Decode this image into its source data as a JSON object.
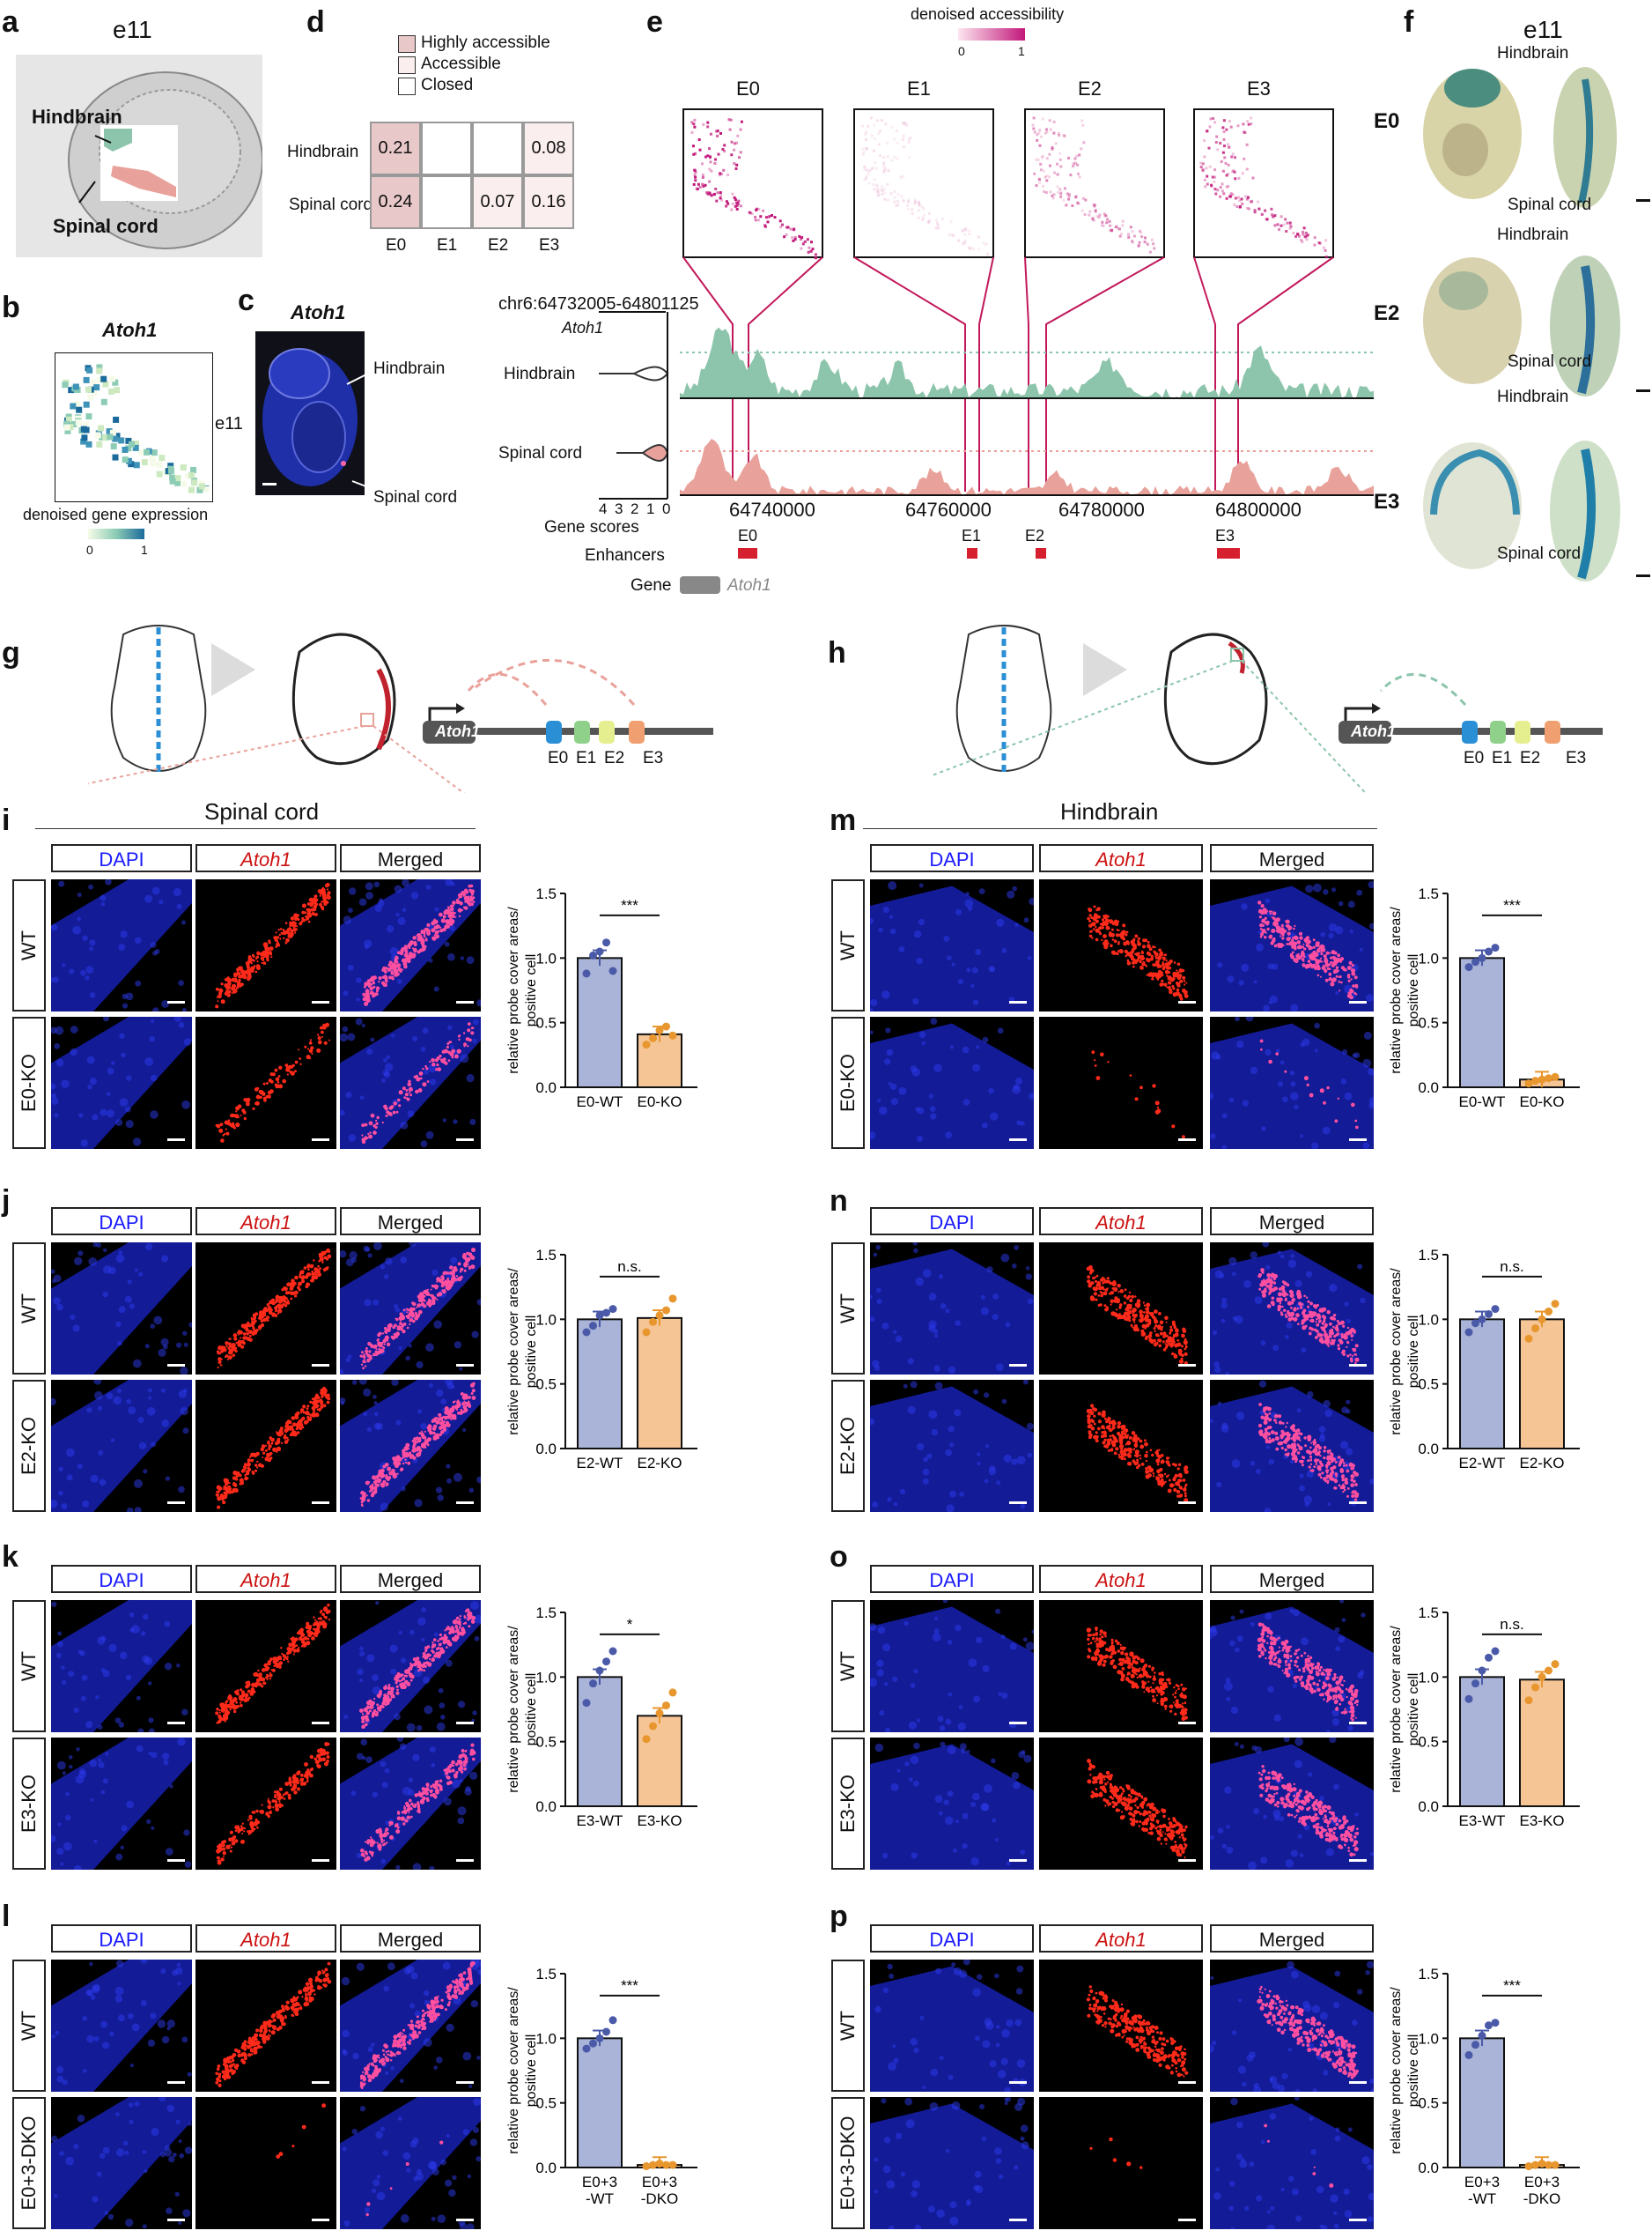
{
  "panel_letters": {
    "a": "a",
    "b": "b",
    "c": "c",
    "d": "d",
    "e": "e",
    "f": "f",
    "g": "g",
    "h": "h",
    "i": "i",
    "j": "j",
    "k": "k",
    "l": "l",
    "m": "m",
    "n": "n",
    "o": "o",
    "p": "p"
  },
  "panel_a": {
    "title": "e11",
    "label_hindbrain": "Hindbrain",
    "label_spinal": "Spinal cord"
  },
  "panel_b": {
    "gene": "Atoh1",
    "legend_title": "denoised gene expression",
    "legend_min": "0",
    "legend_max": "1"
  },
  "panel_c": {
    "gene": "Atoh1",
    "stage": "e11",
    "label_hindbrain": "Hindbrain",
    "label_spinal": "Spinal cord"
  },
  "panel_d": {
    "legend": [
      "Highly accessible",
      "Accessible",
      "Closed"
    ],
    "rows": [
      "Hindbrain",
      "Spinal cord"
    ],
    "cols": [
      "E0",
      "E1",
      "E2",
      "E3"
    ],
    "values": [
      [
        "0.21",
        "",
        "",
        "0.08"
      ],
      [
        "0.24",
        "",
        "0.07",
        "0.16"
      ]
    ]
  },
  "panel_e": {
    "legend_title": "denoised accessibility",
    "legend_min": "0",
    "legend_max": "1",
    "enhancers": [
      "E0",
      "E1",
      "E2",
      "E3"
    ],
    "locus": "chr6:64732005-64801125",
    "gene": "Atoh1",
    "track_hindbrain": "Hindbrain",
    "track_spinal": "Spinal cord",
    "x_ticks": [
      "64740000",
      "64760000",
      "64780000",
      "64800000"
    ],
    "gene_score_ticks": [
      "4",
      "3",
      "2",
      "1",
      "0"
    ],
    "gene_scores_label": "Gene scores",
    "enhancers_label": "Enhancers",
    "gene_label": "Gene",
    "gene_name": "Atoh1"
  },
  "panel_f": {
    "title": "e11",
    "rows": [
      "E0",
      "E2",
      "E3"
    ],
    "label_hindbrain": "Hindbrain",
    "label_spinal": "Spinal cord"
  },
  "panel_g": {
    "gene": "Atoh1",
    "enhancers": [
      "E0",
      "E1",
      "E2",
      "E3"
    ]
  },
  "panel_h": {
    "gene": "Atoh1",
    "enhancers": [
      "E0",
      "E1",
      "E2",
      "E3"
    ]
  },
  "section_spinal": "Spinal cord",
  "section_hindbrain": "Hindbrain",
  "col_headers": {
    "dapi": "DAPI",
    "atoh1": "Atoh1",
    "merged": "Merged"
  },
  "y_axis_label_1": "relative probe cover areas/",
  "y_axis_label_2": "positive cell",
  "y_ticks": [
    "0.0",
    "0.5",
    "1.0",
    "1.5"
  ],
  "colors": {
    "wt_bar": "#a9b4d8",
    "ko_bar": "#f5c596",
    "wt_dot": "#4a5aa8",
    "ko_dot": "#e8962e",
    "hind_track": "#8cc5ab",
    "spinal_track": "#e9a29b",
    "enhancer": "#d6202f",
    "access_magenta": "#c2187a",
    "highly": "#e8c8c8",
    "accessible": "#fbeeee"
  },
  "chart_data": [
    {
      "type": "bar",
      "panel": "i",
      "row_labels": [
        "WT",
        "E0-KO"
      ],
      "categories": [
        "E0-WT",
        "E0-KO"
      ],
      "values": [
        1.0,
        0.41
      ],
      "points": [
        [
          0.88,
          1.02,
          1.05,
          1.12,
          0.9
        ],
        [
          0.33,
          0.38,
          0.44,
          0.47,
          0.4
        ]
      ],
      "sig": "***",
      "ylim": [
        0,
        1.5
      ],
      "ylabel": "relative probe cover areas/ positive cell"
    },
    {
      "type": "bar",
      "panel": "j",
      "row_labels": [
        "WT",
        "E2-KO"
      ],
      "categories": [
        "E2-WT",
        "E2-KO"
      ],
      "values": [
        1.0,
        1.01
      ],
      "points": [
        [
          0.9,
          0.95,
          1.03,
          1.05,
          1.08
        ],
        [
          0.9,
          0.98,
          1.03,
          1.07,
          1.16
        ]
      ],
      "sig": "n.s.",
      "ylim": [
        0,
        1.5
      ],
      "ylabel": "relative probe cover areas/ positive cell"
    },
    {
      "type": "bar",
      "panel": "k",
      "row_labels": [
        "WT",
        "E3-KO"
      ],
      "categories": [
        "E3-WT",
        "E3-KO"
      ],
      "values": [
        1.0,
        0.7
      ],
      "points": [
        [
          0.8,
          0.95,
          1.05,
          1.12,
          1.2
        ],
        [
          0.52,
          0.62,
          0.72,
          0.78,
          0.88
        ]
      ],
      "sig": "*",
      "ylim": [
        0,
        1.5
      ],
      "ylabel": "relative probe cover areas/ positive cell"
    },
    {
      "type": "bar",
      "panel": "l",
      "row_labels": [
        "WT",
        "E0+3-DKO"
      ],
      "categories": [
        "E0+3\n-WT",
        "E0+3\n-DKO"
      ],
      "values": [
        1.0,
        0.02
      ],
      "points": [
        [
          0.92,
          0.96,
          1.0,
          1.05,
          1.14
        ],
        [
          0.01,
          0.02,
          0.03,
          0.02,
          0.02
        ]
      ],
      "sig": "***",
      "ylim": [
        0,
        1.5
      ],
      "ylabel": "relative probe cover areas/ positive cell"
    },
    {
      "type": "bar",
      "panel": "m",
      "row_labels": [
        "WT",
        "E0-KO"
      ],
      "categories": [
        "E0-WT",
        "E0-KO"
      ],
      "values": [
        1.0,
        0.06
      ],
      "points": [
        [
          0.93,
          0.97,
          1.0,
          1.05,
          1.08
        ],
        [
          0.03,
          0.05,
          0.06,
          0.07,
          0.08
        ]
      ],
      "sig": "***",
      "ylim": [
        0,
        1.5
      ],
      "ylabel": "relative probe cover areas/ positive cell"
    },
    {
      "type": "bar",
      "panel": "n",
      "row_labels": [
        "WT",
        "E2-KO"
      ],
      "categories": [
        "E2-WT",
        "E2-KO"
      ],
      "values": [
        1.0,
        1.0
      ],
      "points": [
        [
          0.9,
          0.97,
          1.0,
          1.04,
          1.08
        ],
        [
          0.85,
          0.93,
          1.0,
          1.06,
          1.12
        ]
      ],
      "sig": "n.s.",
      "ylim": [
        0,
        1.5
      ],
      "ylabel": "relative probe cover areas/ positive cell"
    },
    {
      "type": "bar",
      "panel": "o",
      "row_labels": [
        "WT",
        "E3-KO"
      ],
      "categories": [
        "E3-WT",
        "E3-KO"
      ],
      "values": [
        1.0,
        0.98
      ],
      "points": [
        [
          0.83,
          0.95,
          1.05,
          1.15,
          1.2
        ],
        [
          0.82,
          0.92,
          1.0,
          1.05,
          1.1
        ]
      ],
      "sig": "n.s.",
      "ylim": [
        0,
        1.5
      ],
      "ylabel": "relative probe cover areas/ positive cell"
    },
    {
      "type": "bar",
      "panel": "p",
      "row_labels": [
        "WT",
        "E0+3-DKO"
      ],
      "categories": [
        "E0+3\n-WT",
        "E0+3\n-DKO"
      ],
      "values": [
        1.0,
        0.02
      ],
      "points": [
        [
          0.87,
          0.95,
          1.02,
          1.1,
          1.12
        ],
        [
          0.01,
          0.02,
          0.03,
          0.02,
          0.02
        ]
      ],
      "sig": "***",
      "ylim": [
        0,
        1.5
      ],
      "ylabel": "relative probe cover areas/ positive cell"
    }
  ]
}
